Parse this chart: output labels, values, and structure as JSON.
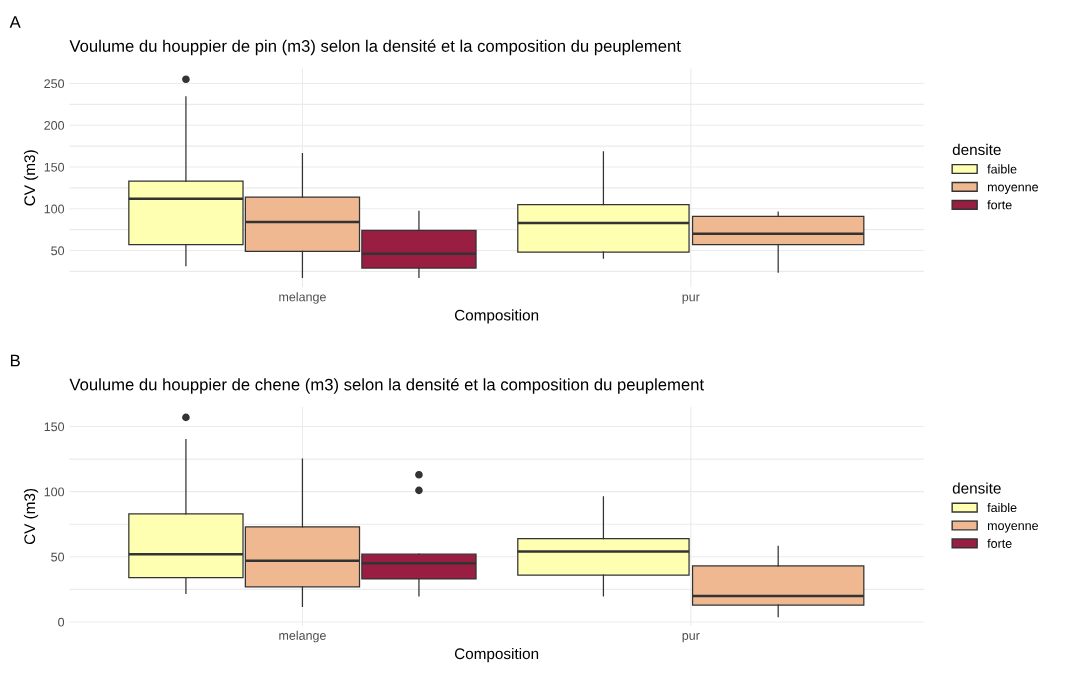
{
  "chart_data": [
    {
      "type": "box",
      "title": "Voulume du houppier de pin (m3) selon la densité et la composition du peuplement",
      "xlabel": "Composition",
      "ylabel": "CV (m3)",
      "legend_title": "densite",
      "annotations": [
        "A"
      ],
      "categories": [
        "melange",
        "pur"
      ],
      "ylim": [
        6,
        268
      ],
      "yticks": [
        50,
        100,
        150,
        200,
        250
      ],
      "grid": true,
      "legend": "right",
      "series": [
        {
          "name": "faible",
          "color": "#ffffb2",
          "boxes": [
            {
              "low": 32,
              "q1": 57,
              "median": 112,
              "q3": 133,
              "high": 234,
              "outliers": [
                255
              ]
            },
            {
              "low": 41,
              "q1": 48,
              "median": 83,
              "q3": 105,
              "high": 168
            }
          ]
        },
        {
          "name": "moyenne",
          "color": "#efb891",
          "boxes": [
            {
              "low": 18,
              "q1": 49,
              "median": 84,
              "q3": 114,
              "high": 166
            },
            {
              "low": 24,
              "q1": 57,
              "median": 70,
              "q3": 91,
              "high": 96
            }
          ]
        },
        {
          "name": "forte",
          "color": "#9a1d42",
          "boxes": [
            {
              "low": 18,
              "q1": 29,
              "median": 46,
              "q3": 74,
              "high": 97
            },
            null
          ]
        }
      ]
    },
    {
      "type": "box",
      "title": "Voulume du houppier de chene (m3) selon la densité et la composition du peuplement",
      "xlabel": "Composition",
      "ylabel": "CV (m3)",
      "legend_title": "densite",
      "annotations": [
        "B"
      ],
      "categories": [
        "melange",
        "pur"
      ],
      "ylim": [
        -3,
        165
      ],
      "yticks": [
        0,
        50,
        100,
        150
      ],
      "grid": true,
      "legend": "right",
      "series": [
        {
          "name": "faible",
          "color": "#ffffb2",
          "boxes": [
            {
              "low": 22,
              "q1": 34,
              "median": 52,
              "q3": 83,
              "high": 140,
              "outliers": [
                157
              ]
            },
            {
              "low": 20,
              "q1": 36,
              "median": 54,
              "q3": 64,
              "high": 96
            }
          ]
        },
        {
          "name": "moyenne",
          "color": "#efb891",
          "boxes": [
            {
              "low": 12,
              "q1": 27,
              "median": 47,
              "q3": 73,
              "high": 125
            },
            {
              "low": 4,
              "q1": 13,
              "median": 20,
              "q3": 43,
              "high": 58
            }
          ]
        },
        {
          "name": "forte",
          "color": "#9a1d42",
          "boxes": [
            {
              "low": 20,
              "q1": 33,
              "median": 45,
              "q3": 52,
              "high": 52,
              "outliers": [
                101,
                113
              ]
            },
            null
          ]
        }
      ]
    }
  ]
}
